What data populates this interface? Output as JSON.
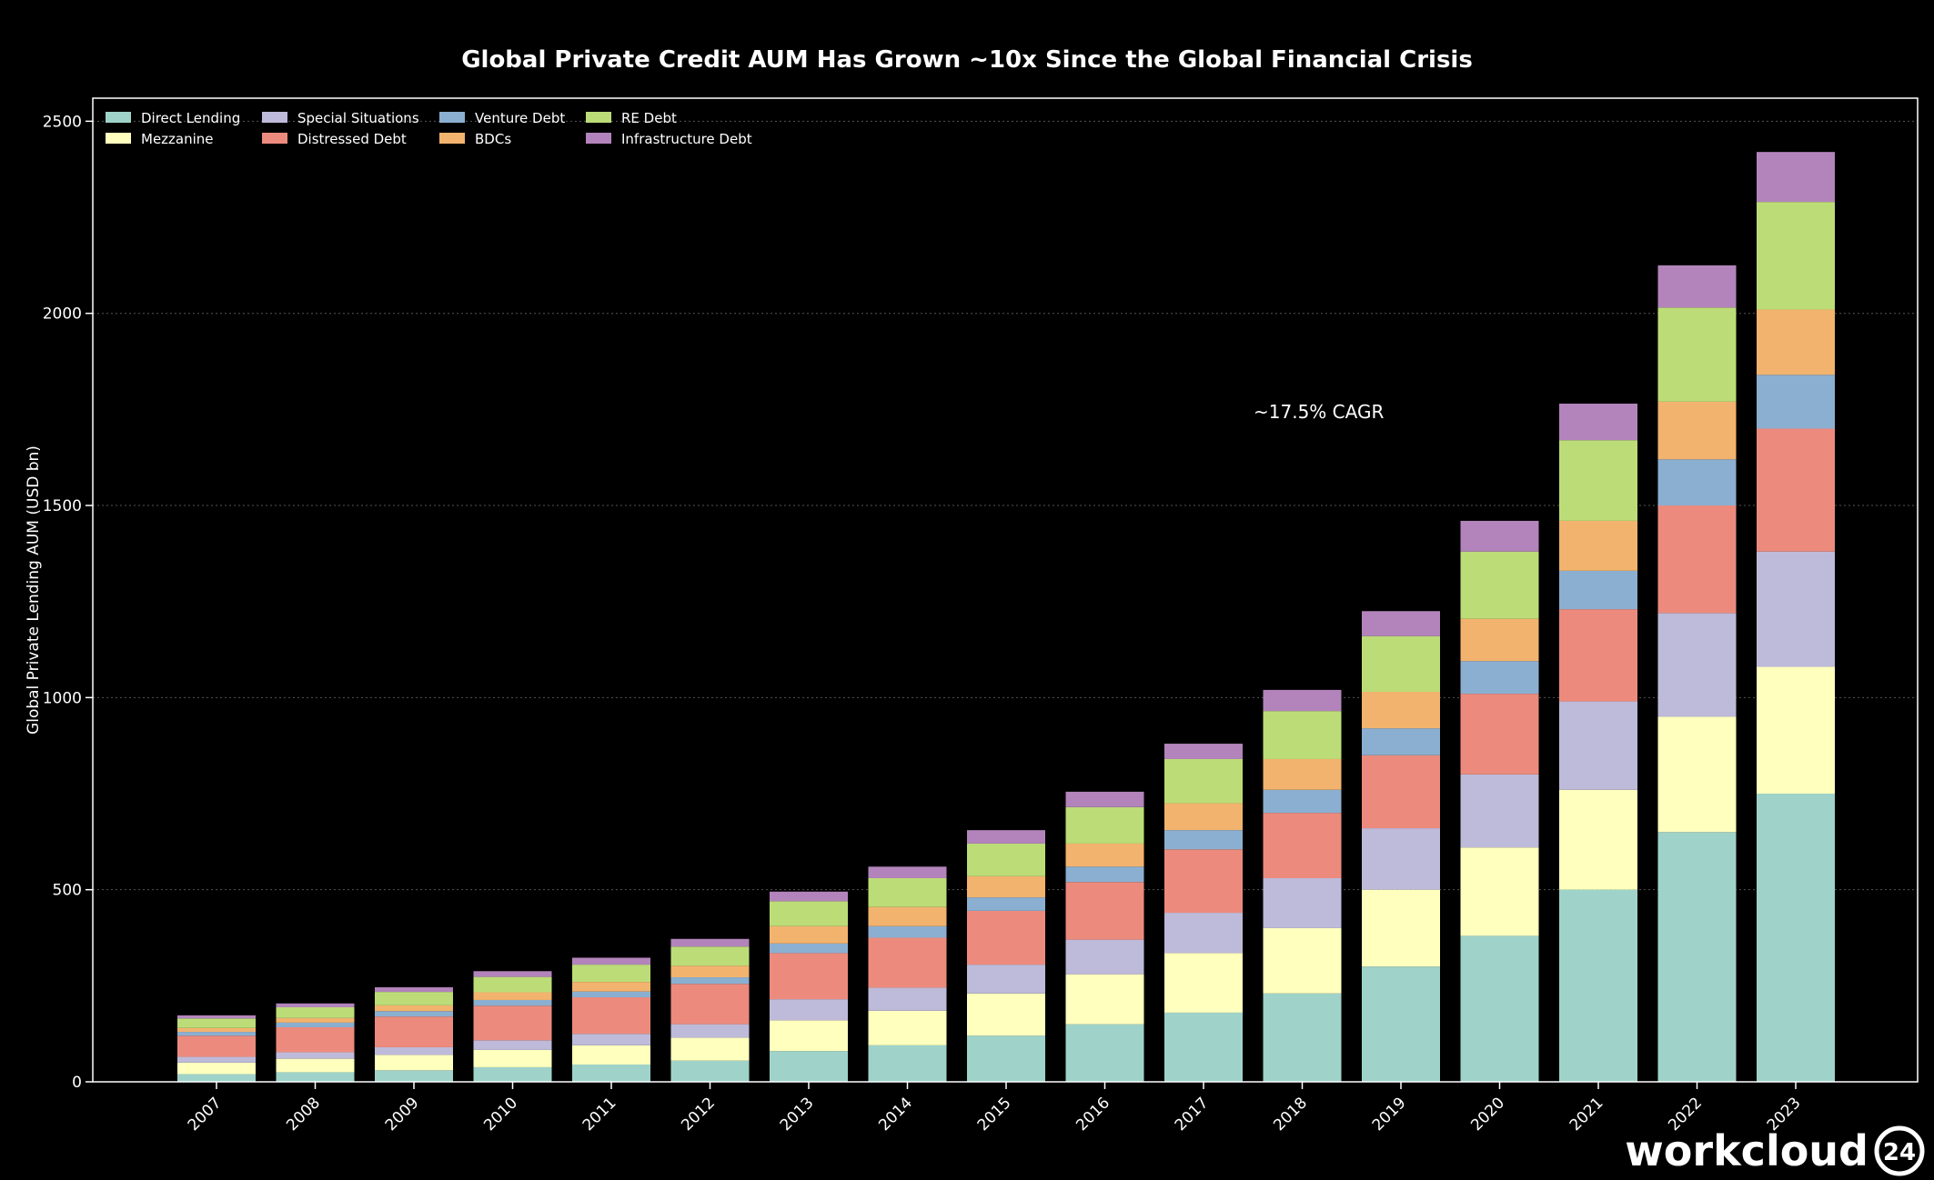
{
  "chart_data": {
    "type": "bar",
    "stacked": true,
    "title": "Global Private Credit AUM Has Grown ~10x Since the Global Financial Crisis",
    "xlabel": "",
    "ylabel": "Global Private Lending AUM (USD bn)",
    "ylim": [
      0,
      2560
    ],
    "yticks": [
      0,
      500,
      1000,
      1500,
      2000,
      2500
    ],
    "grid": true,
    "legend_position": "top-left",
    "annotation": "~17.5% CAGR",
    "categories": [
      "2007",
      "2008",
      "2009",
      "2010",
      "2011",
      "2012",
      "2013",
      "2014",
      "2015",
      "2016",
      "2017",
      "2018",
      "2019",
      "2020",
      "2021",
      "2022",
      "2023"
    ],
    "series": [
      {
        "name": "Direct Lending",
        "color": "#9fd3c9",
        "values": [
          20,
          25,
          30,
          38,
          45,
          55,
          80,
          95,
          120,
          150,
          180,
          230,
          300,
          380,
          500,
          650,
          750
        ]
      },
      {
        "name": "Mezzanine",
        "color": "#ffffbe",
        "values": [
          30,
          35,
          40,
          45,
          50,
          60,
          80,
          90,
          110,
          130,
          155,
          170,
          200,
          230,
          260,
          300,
          330
        ]
      },
      {
        "name": "Special Situations",
        "color": "#bebad9",
        "values": [
          15,
          17,
          20,
          25,
          30,
          35,
          55,
          60,
          75,
          90,
          105,
          130,
          160,
          190,
          230,
          270,
          300
        ]
      },
      {
        "name": "Distressed Debt",
        "color": "#ec8b7d",
        "values": [
          55,
          65,
          80,
          90,
          95,
          105,
          120,
          130,
          140,
          150,
          165,
          170,
          190,
          210,
          240,
          280,
          320
        ]
      },
      {
        "name": "Venture Debt",
        "color": "#8bafd1",
        "values": [
          10,
          12,
          14,
          15,
          15,
          17,
          25,
          30,
          35,
          40,
          50,
          60,
          70,
          85,
          100,
          120,
          140
        ]
      },
      {
        "name": "BDCs",
        "color": "#f2b36e",
        "values": [
          10,
          12,
          15,
          20,
          25,
          30,
          45,
          50,
          55,
          60,
          70,
          80,
          95,
          110,
          130,
          150,
          170
        ]
      },
      {
        "name": "RE Debt",
        "color": "#bcdc78",
        "values": [
          25,
          28,
          35,
          40,
          45,
          50,
          65,
          75,
          85,
          95,
          115,
          125,
          145,
          175,
          210,
          245,
          280
        ]
      },
      {
        "name": "Infrastructure Debt",
        "color": "#b384bb",
        "values": [
          8,
          10,
          12,
          15,
          18,
          20,
          25,
          30,
          35,
          40,
          40,
          55,
          65,
          80,
          95,
          110,
          130
        ]
      }
    ]
  },
  "brand": {
    "name": "workcloud",
    "badge": "24"
  }
}
